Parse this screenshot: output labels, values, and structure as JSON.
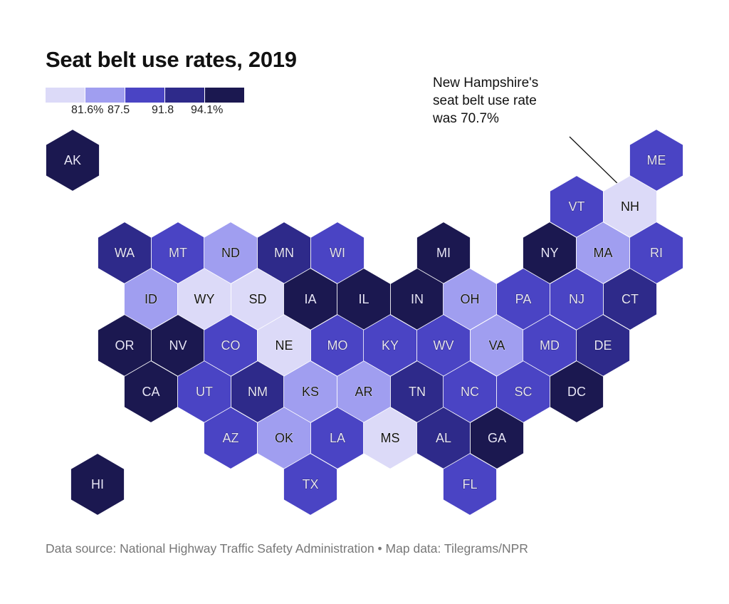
{
  "title": "Seat belt use rates, 2019",
  "legend": {
    "colors": [
      "#dcdaf8",
      "#a09ef0",
      "#4a44c4",
      "#2e2a8a",
      "#1b1850"
    ],
    "breaks": [
      "81.6%",
      "87.5",
      "91.8",
      "94.1%"
    ]
  },
  "annotation": {
    "lines": [
      "New Hampshire's",
      "seat belt use rate",
      "was 70.7%"
    ],
    "target": "NH"
  },
  "source": "Data source: National Highway Traffic Safety Administration • Map data: Tilegrams/NPR",
  "states": [
    {
      "code": "AK",
      "bin": 4
    },
    {
      "code": "ME",
      "bin": 2
    },
    {
      "code": "VT",
      "bin": 2
    },
    {
      "code": "NH",
      "bin": 0
    },
    {
      "code": "WA",
      "bin": 3
    },
    {
      "code": "MT",
      "bin": 2
    },
    {
      "code": "ND",
      "bin": 1
    },
    {
      "code": "MN",
      "bin": 3
    },
    {
      "code": "WI",
      "bin": 2
    },
    {
      "code": "MI",
      "bin": 4
    },
    {
      "code": "NY",
      "bin": 4
    },
    {
      "code": "MA",
      "bin": 1
    },
    {
      "code": "RI",
      "bin": 2
    },
    {
      "code": "ID",
      "bin": 1
    },
    {
      "code": "WY",
      "bin": 0
    },
    {
      "code": "SD",
      "bin": 0
    },
    {
      "code": "IA",
      "bin": 4
    },
    {
      "code": "IL",
      "bin": 4
    },
    {
      "code": "IN",
      "bin": 4
    },
    {
      "code": "OH",
      "bin": 1
    },
    {
      "code": "PA",
      "bin": 2
    },
    {
      "code": "NJ",
      "bin": 2
    },
    {
      "code": "CT",
      "bin": 3
    },
    {
      "code": "OR",
      "bin": 4
    },
    {
      "code": "NV",
      "bin": 4
    },
    {
      "code": "CO",
      "bin": 2
    },
    {
      "code": "NE",
      "bin": 0
    },
    {
      "code": "MO",
      "bin": 2
    },
    {
      "code": "KY",
      "bin": 2
    },
    {
      "code": "WV",
      "bin": 2
    },
    {
      "code": "VA",
      "bin": 1
    },
    {
      "code": "MD",
      "bin": 2
    },
    {
      "code": "DE",
      "bin": 3
    },
    {
      "code": "CA",
      "bin": 4
    },
    {
      "code": "UT",
      "bin": 2
    },
    {
      "code": "NM",
      "bin": 3
    },
    {
      "code": "KS",
      "bin": 1
    },
    {
      "code": "AR",
      "bin": 1
    },
    {
      "code": "TN",
      "bin": 3
    },
    {
      "code": "NC",
      "bin": 2
    },
    {
      "code": "SC",
      "bin": 2
    },
    {
      "code": "DC",
      "bin": 4
    },
    {
      "code": "AZ",
      "bin": 2
    },
    {
      "code": "OK",
      "bin": 1
    },
    {
      "code": "LA",
      "bin": 2
    },
    {
      "code": "MS",
      "bin": 0
    },
    {
      "code": "AL",
      "bin": 3
    },
    {
      "code": "GA",
      "bin": 4
    },
    {
      "code": "HI",
      "bin": 4
    },
    {
      "code": "TX",
      "bin": 2
    },
    {
      "code": "FL",
      "bin": 2
    }
  ]
}
